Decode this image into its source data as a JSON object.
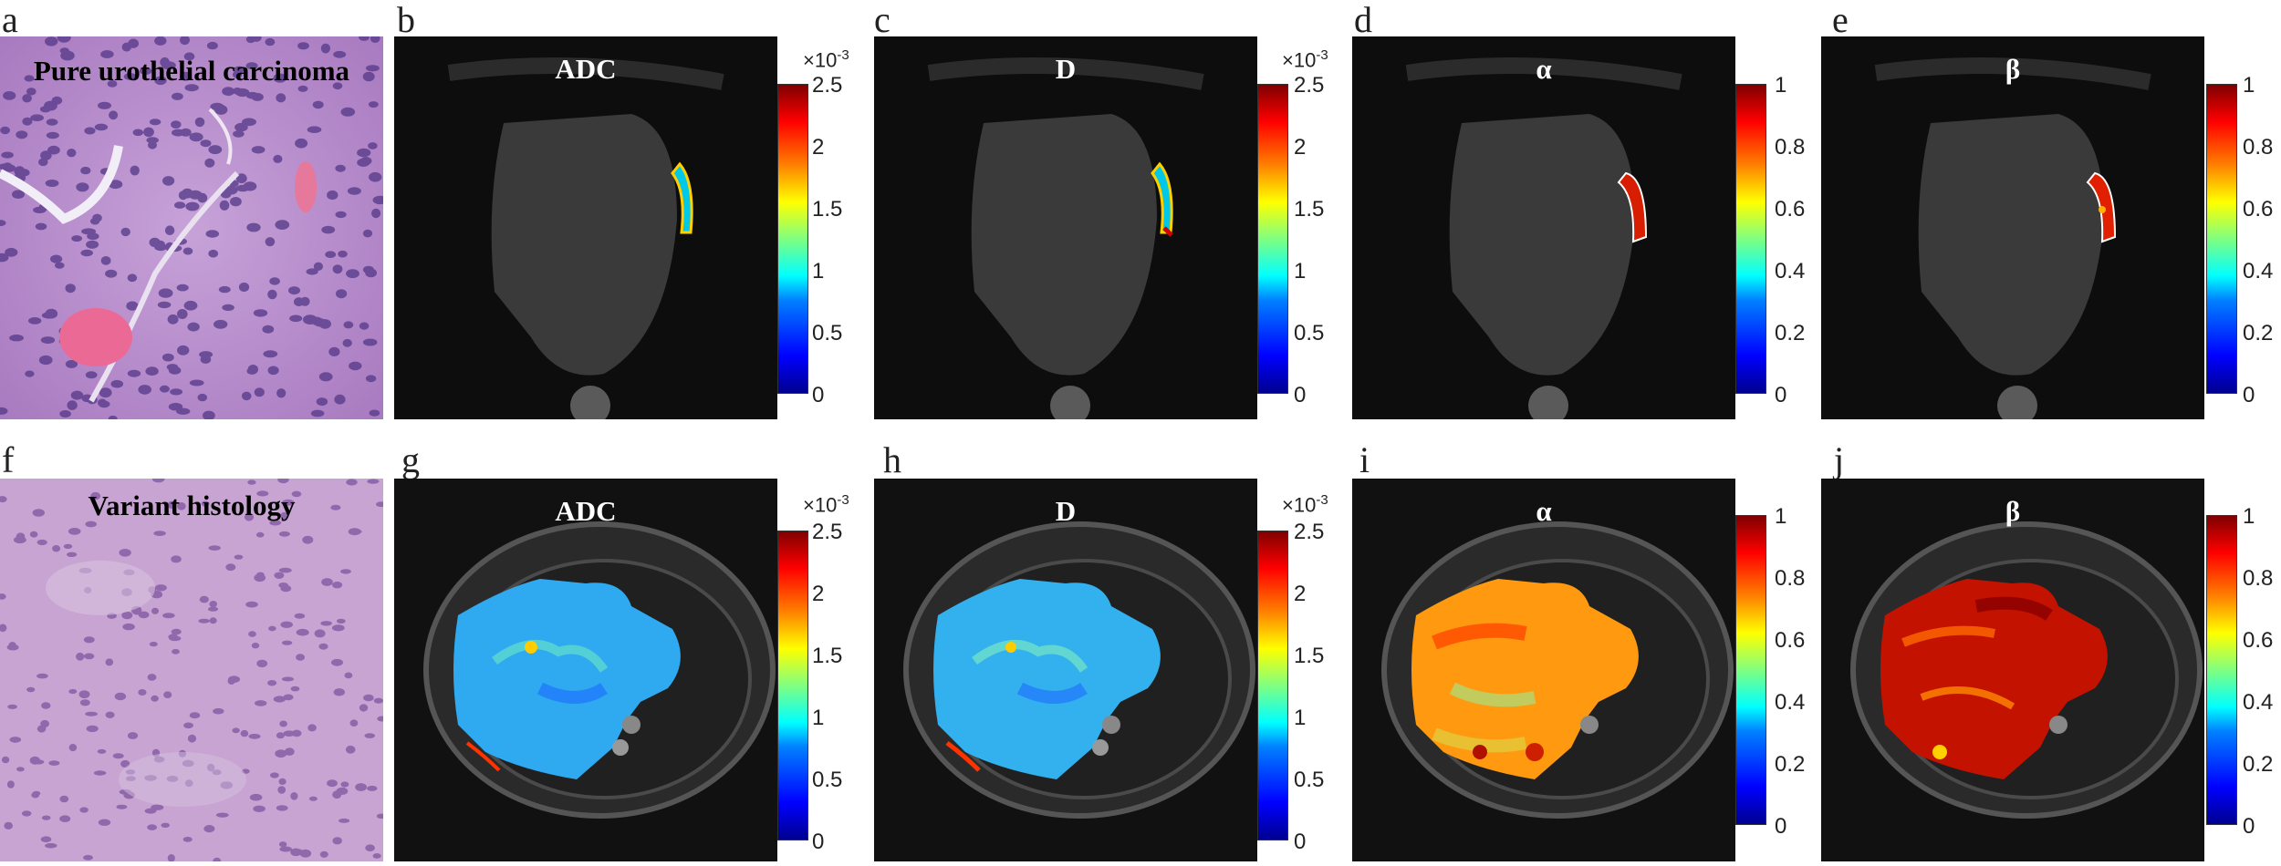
{
  "figure": {
    "row_top": {
      "histology_title": "Pure urothelial carcinoma",
      "letters": [
        "a",
        "b",
        "c",
        "d",
        "e"
      ],
      "map_titles": [
        "ADC",
        "D",
        "α",
        "β"
      ]
    },
    "row_bottom": {
      "histology_title": "Variant histology",
      "letters": [
        "f",
        "g",
        "h",
        "i",
        "j"
      ],
      "map_titles": [
        "ADC",
        "D",
        "α",
        "β"
      ]
    },
    "colorbars": {
      "adc_d": {
        "exponent_base": "×10",
        "exponent_power": "-3",
        "ticks": [
          "2.5",
          "2",
          "1.5",
          "1",
          "0.5",
          "0"
        ]
      },
      "alpha_beta": {
        "ticks": [
          "1",
          "0.8",
          "0.6",
          "0.4",
          "0.2",
          "0"
        ]
      }
    },
    "colors": {
      "jet_low": "#00008f",
      "jet_high": "#800000",
      "he_stain": "#b08acb"
    }
  }
}
